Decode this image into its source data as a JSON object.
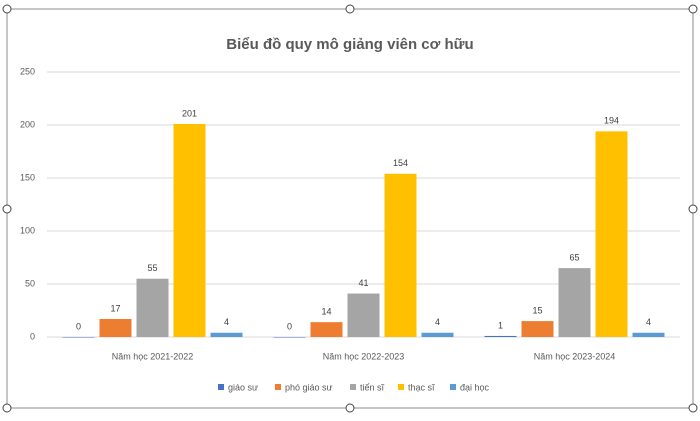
{
  "chart_data": {
    "type": "bar",
    "title": "Biểu đồ quy mô giảng viên cơ hữu",
    "categories": [
      "Năm học 2021-2022",
      "Năm học 2022-2023",
      "Năm học 2023-2024"
    ],
    "series": [
      {
        "name": "giáo sư",
        "color": "#4472c4",
        "values": [
          0,
          0,
          1
        ]
      },
      {
        "name": "phó giáo sư",
        "color": "#ed7d31",
        "values": [
          17,
          14,
          15
        ]
      },
      {
        "name": "tiến sĩ",
        "color": "#a5a5a5",
        "values": [
          55,
          41,
          65
        ]
      },
      {
        "name": "thạc sĩ",
        "color": "#ffc000",
        "values": [
          201,
          154,
          194
        ]
      },
      {
        "name": "đại học",
        "color": "#5b9bd5",
        "values": [
          4,
          4,
          4
        ]
      }
    ],
    "ylim": [
      0,
      250
    ],
    "yticks": [
      0,
      50,
      100,
      150,
      200,
      250
    ],
    "grid": true,
    "legend": "bottom"
  }
}
